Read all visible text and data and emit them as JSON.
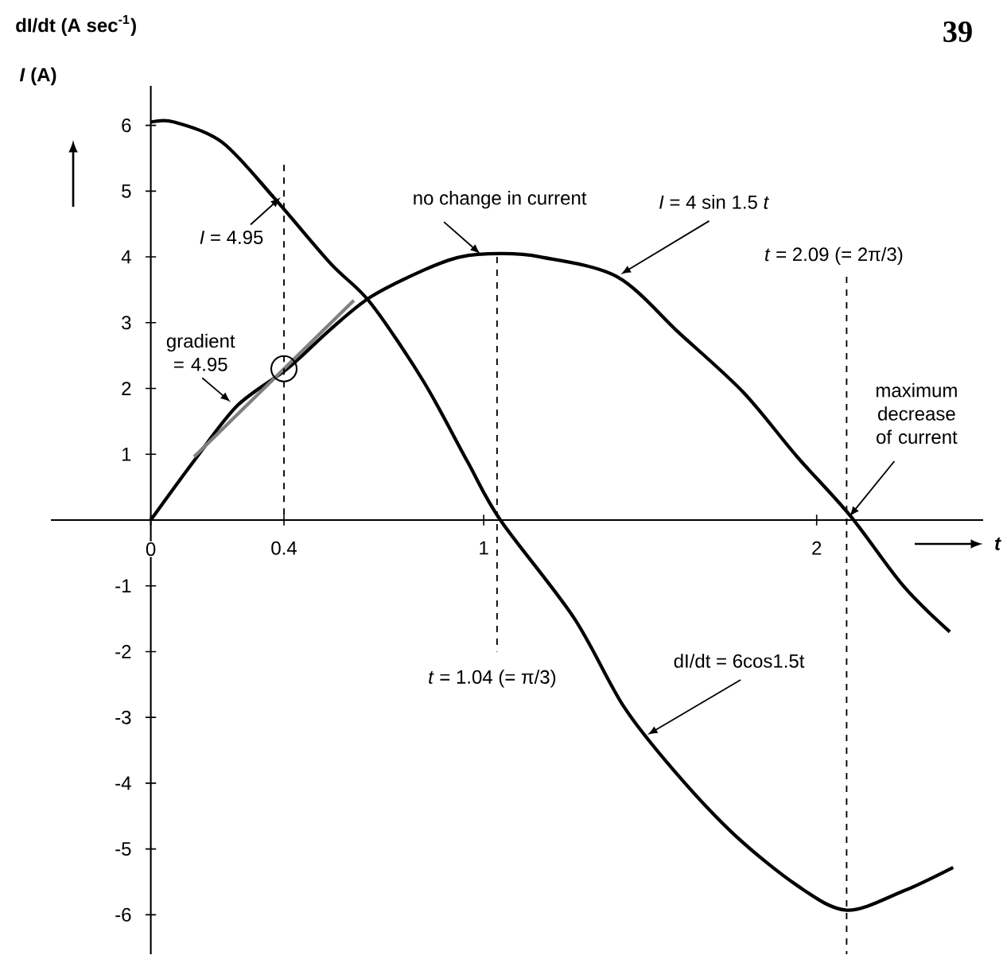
{
  "chart_data": {
    "type": "line",
    "ylabel": "dI/dt (A sec$^{-1}$)",
    "xlabel": "t",
    "xlim": [
      -0.3,
      2.5
    ],
    "ylim": [
      -6.6,
      6.6
    ],
    "xticks": [
      0,
      0.4,
      1,
      2
    ],
    "yticks": [
      -6,
      -5,
      -4,
      -3,
      -2,
      -1,
      1,
      2,
      3,
      4,
      5,
      6
    ],
    "series": [
      {
        "color": "#000000",
        "x": [
          0,
          0.13,
          0.26,
          0.41,
          0.54,
          0.66,
          0.82,
          0.93,
          1.05,
          1.17,
          1.4,
          1.59,
          1.78,
          1.94,
          2.1,
          2.26,
          2.4
        ],
        "values": [
          0,
          0.9,
          1.74,
          2.3,
          2.9,
          3.39,
          3.8,
          4.0,
          4.05,
          4.0,
          3.7,
          2.83,
          1.94,
          0.97,
          0.07,
          -1.0,
          -1.7
        ]
      },
      {
        "color": "#000000",
        "x": [
          0,
          0.07,
          0.215,
          0.37,
          0.54,
          0.66,
          0.82,
          0.95,
          1.05,
          1.27,
          1.42,
          1.57,
          1.75,
          1.94,
          2.09,
          2.26,
          2.41
        ],
        "values": [
          6.05,
          6.05,
          5.74,
          4.9,
          3.9,
          3.3,
          2.1,
          0.9,
          0,
          -1.48,
          -2.83,
          -3.8,
          -4.77,
          -5.55,
          -5.93,
          -5.64,
          -5.28
        ]
      },
      {
        "color": "#808080",
        "x": [
          0.13,
          0.61
        ],
        "values": [
          0.96,
          3.34
        ]
      },
      {
        "type": "scatter",
        "color": "#000000",
        "marker": "circle",
        "x": [
          0.4
        ],
        "values": [
          2.3
        ]
      },
      {
        "color": "#000000",
        "line_style": "dashed",
        "x": [
          0.4,
          0.4
        ],
        "values": [
          5.4,
          0
        ]
      },
      {
        "color": "#000000",
        "line_style": "dashed",
        "x": [
          1.04,
          1.04
        ],
        "values": [
          4.0,
          -2.0
        ]
      },
      {
        "color": "#000000",
        "line_style": "dashed",
        "x": [
          2.09,
          2.09
        ],
        "values": [
          3.7,
          -6.6
        ]
      }
    ],
    "annotations": [
      {
        "text": "*I* = 4.95",
        "x": 0.4,
        "y": 4.95
      },
      {
        "text": "no change in current",
        "x": 1.0,
        "y": 4.0
      },
      {
        "text": "*I* = 4 sin 1.5 *t*",
        "x": 1.4,
        "y": 3.7
      },
      {
        "text": "maximum decrease of current",
        "x": 2.09,
        "y": 0
      },
      {
        "text": "gradient = 4.95",
        "x": 0.25,
        "y": 1.75
      },
      {
        "text": "dI/dt = 6cos1.5t",
        "x": 1.48,
        "y": -3.3
      },
      {
        "text": "*t* = 1.04 (= π/3)",
        "x": 1.04,
        "y": -2.0
      },
      {
        "text": "*t* = 2.09 (= 2π/3)",
        "x": 2.09,
        "y": 3.7
      },
      "*I* (A)",
      "39"
    ]
  }
}
